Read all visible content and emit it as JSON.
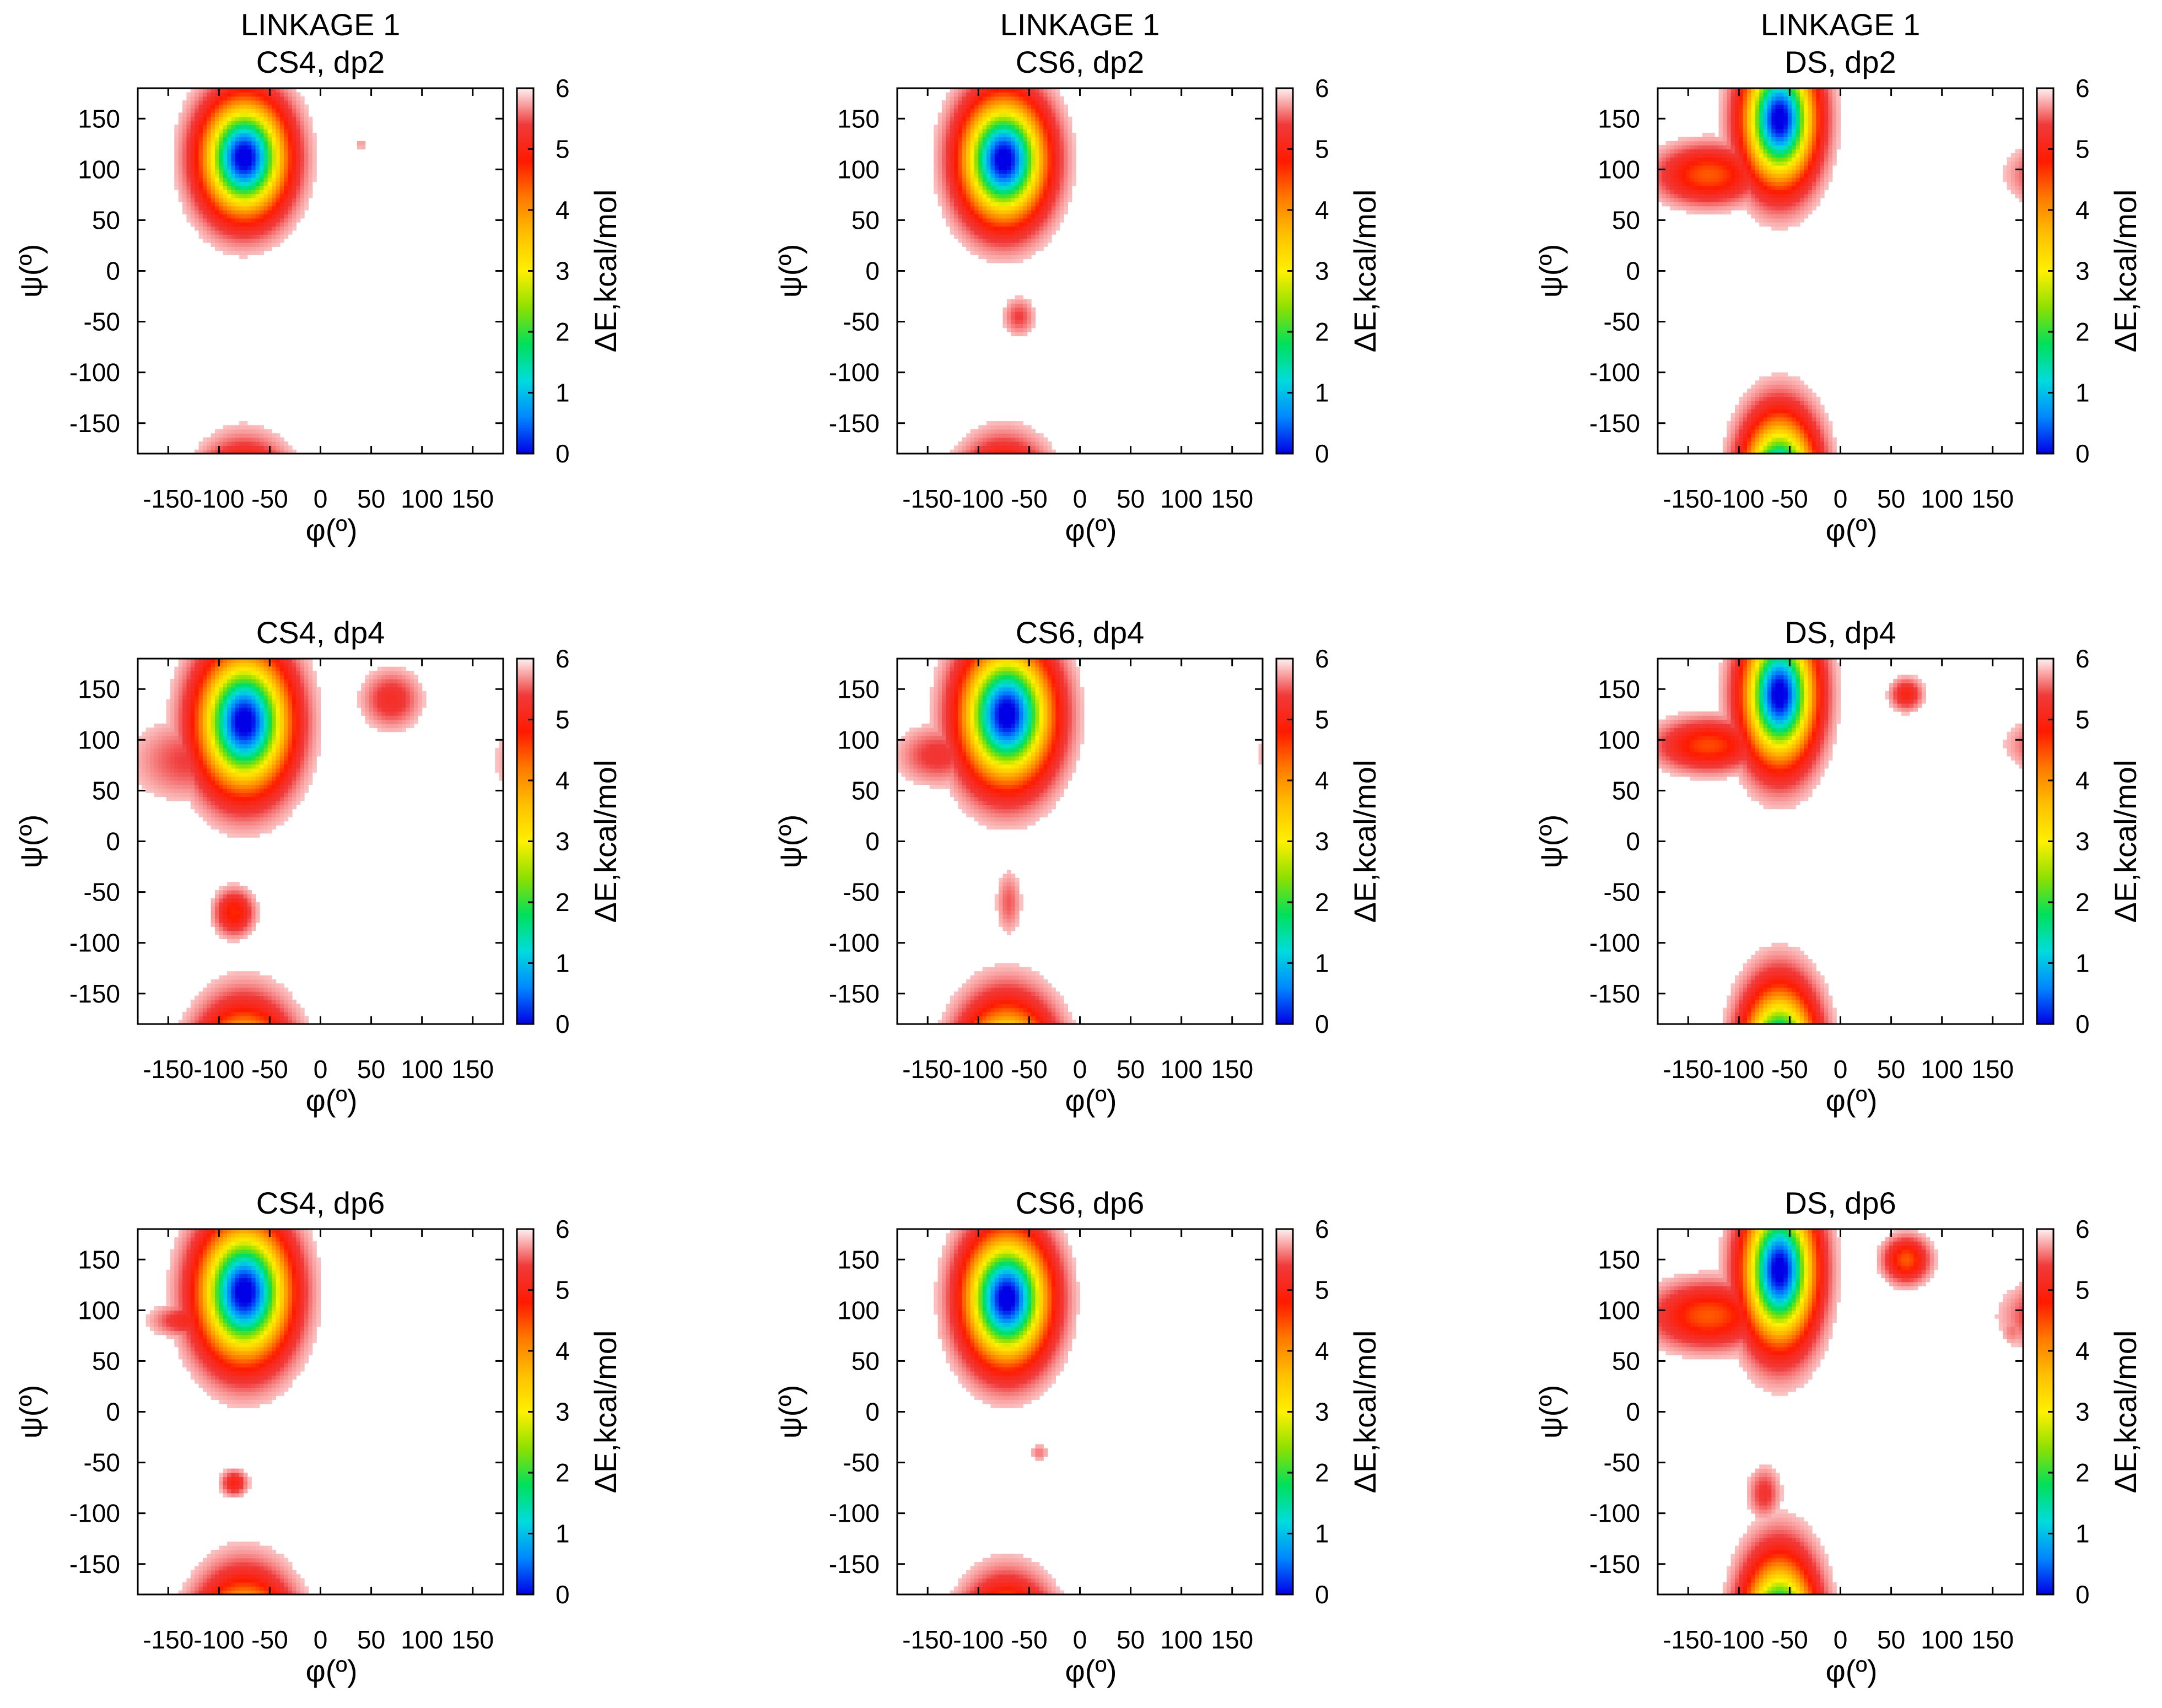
{
  "figure": {
    "description_text": "",
    "colors": {
      "scale": [
        "#0000e6",
        "#0088ff",
        "#00dcdc",
        "#00e05a",
        "#8ee000",
        "#fff000",
        "#ffc000",
        "#ff7a00",
        "#ff1a00",
        "#f03a3a",
        "#fff0f0"
      ]
    }
  },
  "chart_data": [
    {
      "type": "heatmap",
      "title_lines": [
        "LINKAGE 1",
        "CS4, dp2"
      ],
      "xlabel": "φ(º)",
      "ylabel": "ψ(º)",
      "colorbar_label": "ΔE,kcal/mol",
      "xlim": [
        -180,
        180
      ],
      "ylim": [
        -180,
        180
      ],
      "xticks": [
        -150,
        -100,
        -50,
        0,
        50,
        100,
        150
      ],
      "xtick_labels": [
        "-150",
        "-100",
        "-50",
        "0",
        "50",
        "100",
        "150"
      ],
      "yticks": [
        150,
        100,
        50,
        0,
        -50,
        -100,
        -150
      ],
      "ytick_labels": [
        "150",
        "100",
        "50",
        "0",
        "-50",
        "-100",
        "-150"
      ],
      "colorbar_ticks": [
        0,
        1,
        2,
        3,
        4,
        5,
        6
      ],
      "colorbar_tick_labels": [
        "0",
        "1",
        "2",
        "3",
        "4",
        "5",
        "6"
      ],
      "energy_range": [
        0,
        6
      ],
      "basins": [
        {
          "phi": -75,
          "psi": 112,
          "sx": 26,
          "sy": 36,
          "depth": 6.2
        },
        {
          "phi": -80,
          "psi": 65,
          "sx": 10,
          "sy": 10,
          "depth": 0.7
        },
        {
          "phi": 40,
          "psi": 125,
          "sx": 4,
          "sy": 4,
          "depth": 0.3
        }
      ]
    },
    {
      "type": "heatmap",
      "title_lines": [
        "LINKAGE 1",
        "CS6, dp2"
      ],
      "xlabel": "φ(º)",
      "ylabel": "ψ(º)",
      "colorbar_label": "ΔE,kcal/mol",
      "xlim": [
        -180,
        180
      ],
      "ylim": [
        -180,
        180
      ],
      "xticks": [
        -150,
        -100,
        -50,
        0,
        50,
        100,
        150
      ],
      "xtick_labels": [
        "-150",
        "-100",
        "-50",
        "0",
        "50",
        "100",
        "150"
      ],
      "yticks": [
        150,
        100,
        50,
        0,
        -50,
        -100,
        -150
      ],
      "ytick_labels": [
        "150",
        "100",
        "50",
        "0",
        "-50",
        "-100",
        "-150"
      ],
      "colorbar_ticks": [
        0,
        1,
        2,
        3,
        4,
        5,
        6
      ],
      "colorbar_tick_labels": [
        "0",
        "1",
        "2",
        "3",
        "4",
        "5",
        "6"
      ],
      "energy_range": [
        0,
        6
      ],
      "basins": [
        {
          "phi": -75,
          "psi": 110,
          "sx": 26,
          "sy": 38,
          "depth": 6.2
        },
        {
          "phi": -60,
          "psi": -45,
          "sx": 10,
          "sy": 12,
          "depth": 0.6
        }
      ]
    },
    {
      "type": "heatmap",
      "title_lines": [
        "LINKAGE 1",
        "DS, dp2"
      ],
      "xlabel": "φ(º)",
      "ylabel": "ψ(º)",
      "colorbar_label": "ΔE,kcal/mol",
      "xlim": [
        -180,
        180
      ],
      "ylim": [
        -180,
        180
      ],
      "xticks": [
        -150,
        -100,
        -50,
        0,
        50,
        100,
        150
      ],
      "xtick_labels": [
        "-150",
        "-100",
        "-50",
        "0",
        "50",
        "100",
        "150"
      ],
      "yticks": [
        150,
        100,
        50,
        0,
        -50,
        -100,
        -150
      ],
      "ytick_labels": [
        "150",
        "100",
        "50",
        "0",
        "-50",
        "-100",
        "-150"
      ],
      "colorbar_ticks": [
        0,
        1,
        2,
        3,
        4,
        5,
        6
      ],
      "colorbar_tick_labels": [
        "0",
        "1",
        "2",
        "3",
        "4",
        "5",
        "6"
      ],
      "energy_range": [
        0,
        6
      ],
      "basins": [
        {
          "phi": -60,
          "psi": 150,
          "sx": 22,
          "sy": 40,
          "depth": 6.2
        },
        {
          "phi": -130,
          "psi": 95,
          "sx": 32,
          "sy": 18,
          "depth": 1.6
        },
        {
          "phi": -63,
          "psi": -175,
          "sx": 14,
          "sy": 6,
          "depth": 1.5
        }
      ]
    },
    {
      "type": "heatmap",
      "title_lines": [
        "CS4, dp4"
      ],
      "xlabel": "φ(º)",
      "ylabel": "ψ(º)",
      "colorbar_label": "ΔE,kcal/mol",
      "xlim": [
        -180,
        180
      ],
      "ylim": [
        -180,
        180
      ],
      "xticks": [
        -150,
        -100,
        -50,
        0,
        50,
        100,
        150
      ],
      "xtick_labels": [
        "-150",
        "-100",
        "-50",
        "0",
        "50",
        "100",
        "150"
      ],
      "yticks": [
        150,
        100,
        50,
        0,
        -50,
        -100,
        -150
      ],
      "ytick_labels": [
        "150",
        "100",
        "50",
        "0",
        "-50",
        "-100",
        "-150"
      ],
      "colorbar_ticks": [
        0,
        1,
        2,
        3,
        4,
        5,
        6
      ],
      "colorbar_tick_labels": [
        "0",
        "1",
        "2",
        "3",
        "4",
        "5",
        "6"
      ],
      "energy_range": [
        0,
        6
      ],
      "basins": [
        {
          "phi": -75,
          "psi": 118,
          "sx": 28,
          "sy": 42,
          "depth": 6.2
        },
        {
          "phi": -85,
          "psi": -70,
          "sx": 12,
          "sy": 14,
          "depth": 1.3
        },
        {
          "phi": 70,
          "psi": 140,
          "sx": 18,
          "sy": 18,
          "depth": 0.8
        },
        {
          "phi": -130,
          "psi": 80,
          "sx": 35,
          "sy": 25,
          "depth": 0.6
        },
        {
          "phi": -80,
          "psi": -178,
          "sx": 20,
          "sy": 6,
          "depth": 0.5
        }
      ]
    },
    {
      "type": "heatmap",
      "title_lines": [
        "CS6, dp4"
      ],
      "xlabel": "φ(º)",
      "ylabel": "ψ(º)",
      "colorbar_label": "ΔE,kcal/mol",
      "xlim": [
        -180,
        180
      ],
      "ylim": [
        -180,
        180
      ],
      "xticks": [
        -150,
        -100,
        -50,
        0,
        50,
        100,
        150
      ],
      "xtick_labels": [
        "-150",
        "-100",
        "-50",
        "0",
        "50",
        "100",
        "150"
      ],
      "yticks": [
        150,
        100,
        50,
        0,
        -50,
        -100,
        -150
      ],
      "ytick_labels": [
        "150",
        "100",
        "50",
        "0",
        "-50",
        "-100",
        "-150"
      ],
      "colorbar_ticks": [
        0,
        1,
        2,
        3,
        4,
        5,
        6
      ],
      "colorbar_tick_labels": [
        "0",
        "1",
        "2",
        "3",
        "4",
        "5",
        "6"
      ],
      "energy_range": [
        0,
        6
      ],
      "basins": [
        {
          "phi": -72,
          "psi": 125,
          "sx": 28,
          "sy": 42,
          "depth": 6.2
        },
        {
          "phi": -140,
          "psi": 85,
          "sx": 25,
          "sy": 18,
          "depth": 0.7
        },
        {
          "phi": -70,
          "psi": -60,
          "sx": 8,
          "sy": 20,
          "depth": 0.5
        },
        {
          "phi": -80,
          "psi": -178,
          "sx": 30,
          "sy": 6,
          "depth": 0.5
        }
      ]
    },
    {
      "type": "heatmap",
      "title_lines": [
        "DS, dp4"
      ],
      "xlabel": "φ(º)",
      "ylabel": "ψ(º)",
      "colorbar_label": "ΔE,kcal/mol",
      "xlim": [
        -180,
        180
      ],
      "ylim": [
        -180,
        180
      ],
      "xticks": [
        -150,
        -100,
        -50,
        0,
        50,
        100,
        150
      ],
      "xtick_labels": [
        "-150",
        "-100",
        "-50",
        "0",
        "50",
        "100",
        "150"
      ],
      "yticks": [
        150,
        100,
        50,
        0,
        -50,
        -100,
        -150
      ],
      "ytick_labels": [
        "150",
        "100",
        "50",
        "0",
        "-50",
        "-100",
        "-150"
      ],
      "colorbar_ticks": [
        0,
        1,
        2,
        3,
        4,
        5,
        6
      ],
      "colorbar_tick_labels": [
        "0",
        "1",
        "2",
        "3",
        "4",
        "5",
        "6"
      ],
      "energy_range": [
        0,
        6
      ],
      "basins": [
        {
          "phi": -60,
          "psi": 145,
          "sx": 22,
          "sy": 42,
          "depth": 6.2
        },
        {
          "phi": -130,
          "psi": 95,
          "sx": 32,
          "sy": 16,
          "depth": 1.5
        },
        {
          "phi": -65,
          "psi": -175,
          "sx": 12,
          "sy": 6,
          "depth": 1.5
        },
        {
          "phi": 65,
          "psi": 145,
          "sx": 10,
          "sy": 10,
          "depth": 1.0
        }
      ]
    },
    {
      "type": "heatmap",
      "title_lines": [
        "CS4, dp6"
      ],
      "xlabel": "φ(º)",
      "ylabel": "ψ(º)",
      "colorbar_label": "ΔE,kcal/mol",
      "xlim": [
        -180,
        180
      ],
      "ylim": [
        -180,
        180
      ],
      "xticks": [
        -150,
        -100,
        -50,
        0,
        50,
        100,
        150
      ],
      "xtick_labels": [
        "-150",
        "-100",
        "-50",
        "0",
        "50",
        "100",
        "150"
      ],
      "yticks": [
        150,
        100,
        50,
        0,
        -50,
        -100,
        -150
      ],
      "ytick_labels": [
        "150",
        "100",
        "50",
        "0",
        "-50",
        "-100",
        "-150"
      ],
      "colorbar_ticks": [
        0,
        1,
        2,
        3,
        4,
        5,
        6
      ],
      "colorbar_tick_labels": [
        "0",
        "1",
        "2",
        "3",
        "4",
        "5",
        "6"
      ],
      "energy_range": [
        0,
        6
      ],
      "basins": [
        {
          "phi": -75,
          "psi": 118,
          "sx": 28,
          "sy": 42,
          "depth": 6.2
        },
        {
          "phi": -130,
          "psi": 90,
          "sx": 22,
          "sy": 10,
          "depth": 0.9
        },
        {
          "phi": -85,
          "psi": -70,
          "sx": 8,
          "sy": 8,
          "depth": 1.0
        }
      ]
    },
    {
      "type": "heatmap",
      "title_lines": [
        "CS6, dp6"
      ],
      "xlabel": "φ(º)",
      "ylabel": "ψ(º)",
      "colorbar_label": "ΔE,kcal/mol",
      "xlim": [
        -180,
        180
      ],
      "ylim": [
        -180,
        180
      ],
      "xticks": [
        -150,
        -100,
        -50,
        0,
        50,
        100,
        150
      ],
      "xtick_labels": [
        "-150",
        "-100",
        "-50",
        "0",
        "50",
        "100",
        "150"
      ],
      "yticks": [
        150,
        100,
        50,
        0,
        -50,
        -100,
        -150
      ],
      "ytick_labels": [
        "150",
        "100",
        "50",
        "0",
        "-50",
        "-100",
        "-150"
      ],
      "colorbar_ticks": [
        0,
        1,
        2,
        3,
        4,
        5,
        6
      ],
      "colorbar_tick_labels": [
        "0",
        "1",
        "2",
        "3",
        "4",
        "5",
        "6"
      ],
      "energy_range": [
        0,
        6
      ],
      "basins": [
        {
          "phi": -72,
          "psi": 112,
          "sx": 26,
          "sy": 40,
          "depth": 6.2
        },
        {
          "phi": -110,
          "psi": 80,
          "sx": 18,
          "sy": 12,
          "depth": 0.7
        },
        {
          "phi": -40,
          "psi": -40,
          "sx": 6,
          "sy": 6,
          "depth": 0.4
        }
      ]
    },
    {
      "type": "heatmap",
      "title_lines": [
        "DS, dp6"
      ],
      "xlabel": "φ(º)",
      "ylabel": "ψ(º)",
      "colorbar_label": "ΔE,kcal/mol",
      "xlim": [
        -180,
        180
      ],
      "ylim": [
        -180,
        180
      ],
      "xticks": [
        -150,
        -100,
        -50,
        0,
        50,
        100,
        150
      ],
      "xtick_labels": [
        "-150",
        "-100",
        "-50",
        "0",
        "50",
        "100",
        "150"
      ],
      "yticks": [
        150,
        100,
        50,
        0,
        -50,
        -100,
        -150
      ],
      "ytick_labels": [
        "150",
        "100",
        "50",
        "0",
        "-50",
        "-100",
        "-150"
      ],
      "colorbar_ticks": [
        0,
        1,
        2,
        3,
        4,
        5,
        6
      ],
      "colorbar_tick_labels": [
        "0",
        "1",
        "2",
        "3",
        "4",
        "5",
        "6"
      ],
      "energy_range": [
        0,
        6
      ],
      "basins": [
        {
          "phi": -60,
          "psi": 140,
          "sx": 22,
          "sy": 45,
          "depth": 6.2
        },
        {
          "phi": -130,
          "psi": 95,
          "sx": 35,
          "sy": 20,
          "depth": 1.6
        },
        {
          "phi": 65,
          "psi": 150,
          "sx": 14,
          "sy": 14,
          "depth": 1.6
        },
        {
          "phi": -70,
          "psi": -175,
          "sx": 18,
          "sy": 6,
          "depth": 1.6
        },
        {
          "phi": -75,
          "psi": -80,
          "sx": 10,
          "sy": 16,
          "depth": 0.7
        },
        {
          "phi": 170,
          "psi": 80,
          "sx": 8,
          "sy": 10,
          "depth": 0.4
        }
      ]
    }
  ]
}
